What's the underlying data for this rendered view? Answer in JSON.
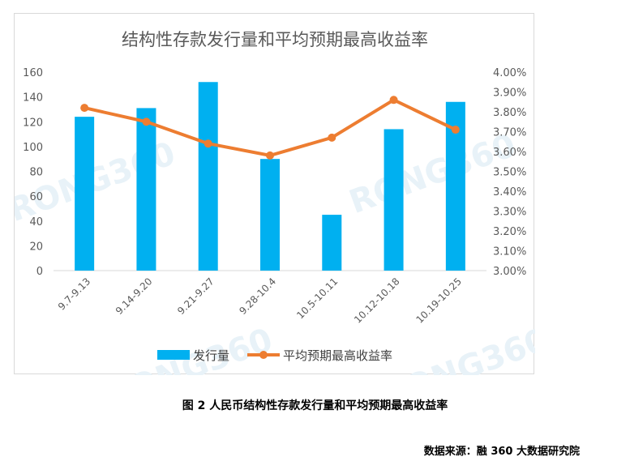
{
  "chart_data": {
    "type": "bar",
    "title": "结构性存款发行量和平均预期最高收益率",
    "categories": [
      "9.7-9.13",
      "9.14-9.20",
      "9.21-9.27",
      "9.28-10.4",
      "10.5-10.11",
      "10.12-10.18",
      "10.19-10.25"
    ],
    "series": [
      {
        "name": "发行量",
        "type": "bar",
        "axis": "left",
        "color": "#00b0f0",
        "values": [
          124,
          131,
          152,
          90,
          45,
          114,
          136
        ]
      },
      {
        "name": "平均预期最高收益率",
        "type": "line",
        "axis": "right",
        "color": "#ed7d31",
        "values": [
          3.82,
          3.75,
          3.64,
          3.58,
          3.67,
          3.86,
          3.71
        ]
      }
    ],
    "y_left": {
      "min": 0,
      "max": 160,
      "step": 20,
      "tick_labels": [
        "0",
        "20",
        "40",
        "60",
        "80",
        "100",
        "120",
        "140",
        "160"
      ]
    },
    "y_right": {
      "min": 3.0,
      "max": 4.0,
      "step": 0.1,
      "tick_labels": [
        "3.00%",
        "3.10%",
        "3.20%",
        "3.30%",
        "3.40%",
        "3.50%",
        "3.60%",
        "3.70%",
        "3.80%",
        "3.90%",
        "4.00%"
      ]
    },
    "grid": false,
    "legend_position": "bottom",
    "watermark": "RONG360"
  },
  "caption": "图 2 人民币结构性存款发行量和平均预期最高收益率",
  "source": "数据来源：融 360 大数据研究院"
}
